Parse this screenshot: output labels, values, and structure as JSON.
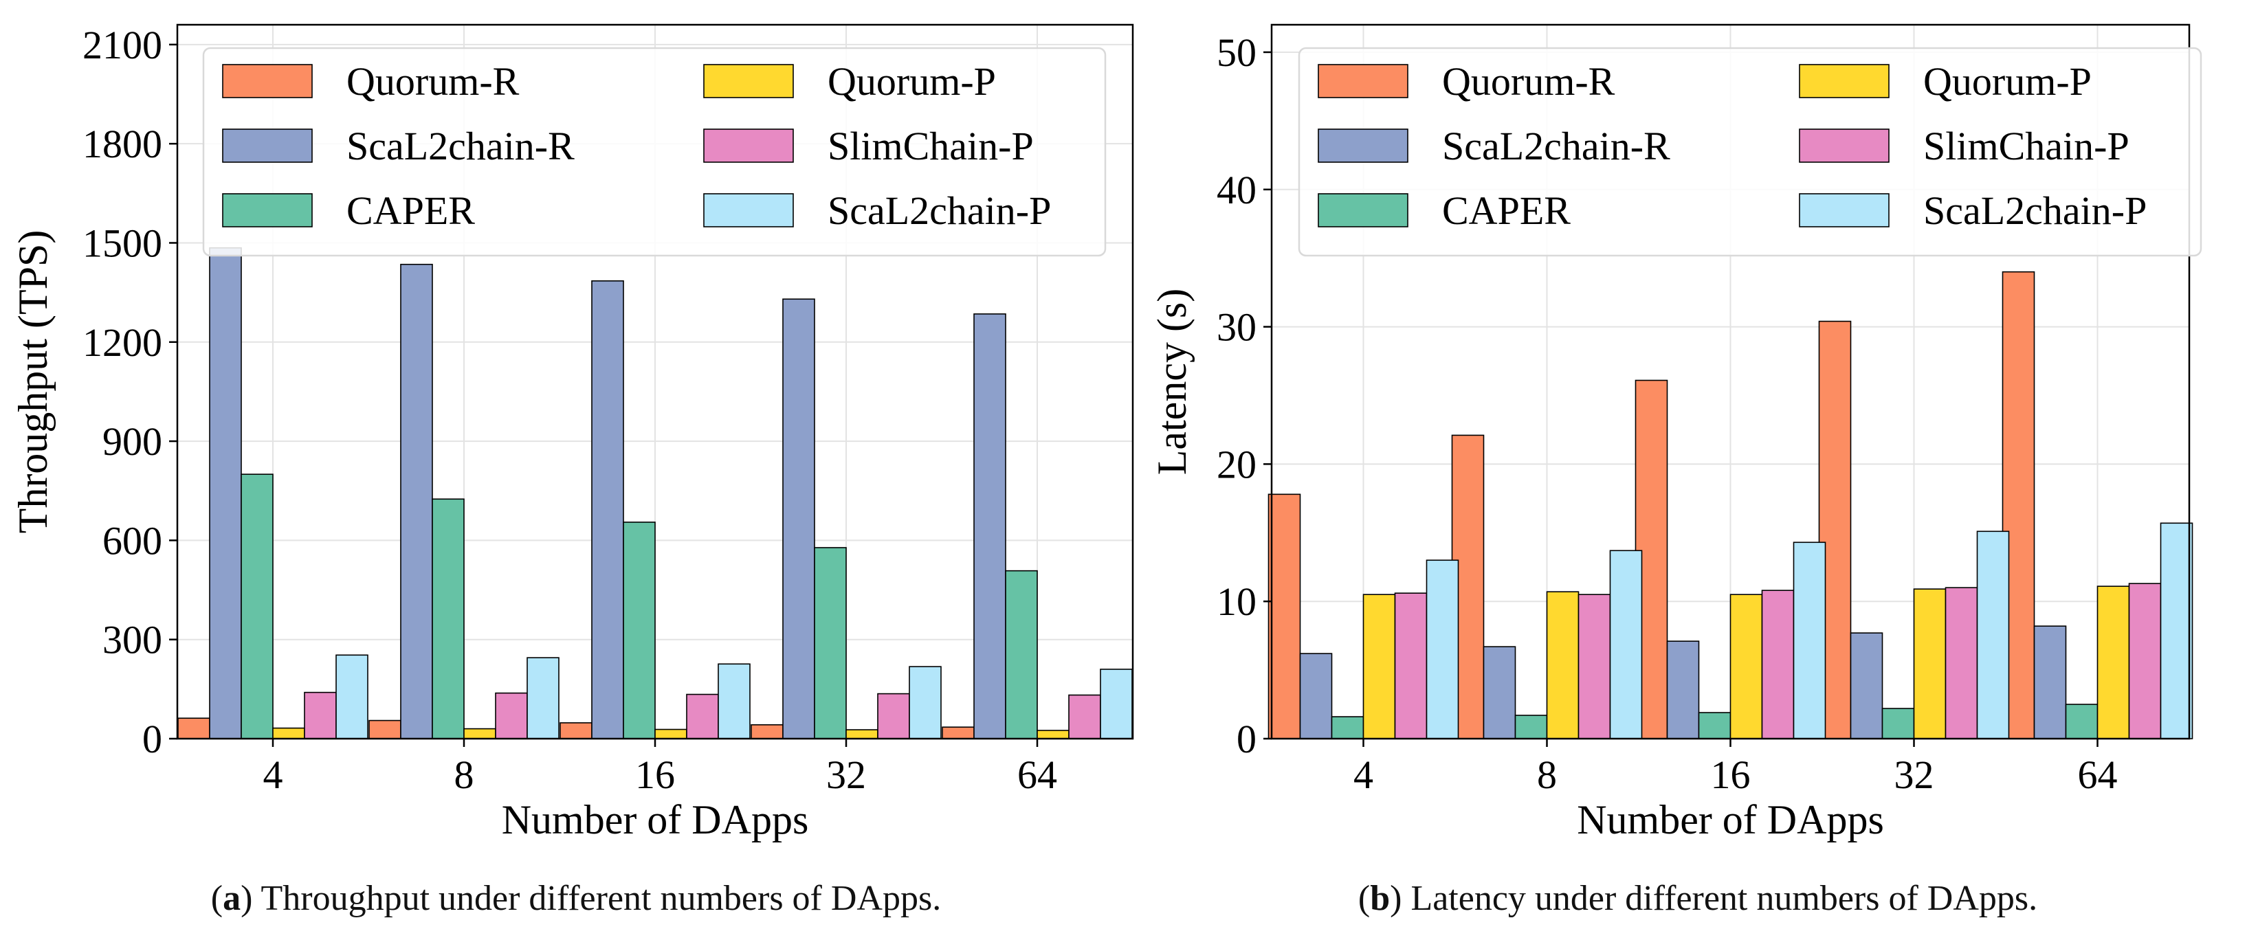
{
  "charts": [
    {
      "type": "bar",
      "xlabel": "Number of DApps",
      "ylabel": "Throughput (TPS)",
      "categories": [
        "4",
        "8",
        "16",
        "32",
        "64"
      ],
      "ylim": [
        0,
        2160
      ],
      "yticks": [
        0,
        300,
        600,
        900,
        1200,
        1500,
        1800,
        2100
      ],
      "grid": true,
      "legend_position": "top",
      "series": [
        {
          "name": "Quorum-R",
          "color": "#fc8d62",
          "values": [
            62,
            55,
            48,
            42,
            35
          ]
        },
        {
          "name": "ScaL2chain-R",
          "color": "#8da0cb",
          "values": [
            1485,
            1435,
            1385,
            1330,
            1285
          ]
        },
        {
          "name": "CAPER",
          "color": "#66c2a5",
          "values": [
            800,
            725,
            655,
            578,
            508
          ]
        },
        {
          "name": "Quorum-P",
          "color": "#ffd92f",
          "values": [
            32,
            30,
            28,
            27,
            25
          ]
        },
        {
          "name": "SlimChain-P",
          "color": "#e78ac3",
          "values": [
            140,
            138,
            134,
            136,
            132
          ]
        },
        {
          "name": "ScaL2chain-P",
          "color": "#b3e6fa",
          "values": [
            253,
            245,
            226,
            218,
            210
          ]
        }
      ]
    },
    {
      "type": "bar",
      "xlabel": "Number of DApps",
      "ylabel": "Latency (s)",
      "categories": [
        "4",
        "8",
        "16",
        "32",
        "64"
      ],
      "ylim": [
        0,
        52
      ],
      "yticks": [
        0,
        10,
        20,
        30,
        40,
        50
      ],
      "grid": true,
      "legend_position": "top",
      "series": [
        {
          "name": "Quorum-R",
          "color": "#fc8d62",
          "values": [
            17.8,
            22.1,
            26.1,
            30.4,
            34.0
          ]
        },
        {
          "name": "ScaL2chain-R",
          "color": "#8da0cb",
          "values": [
            6.2,
            6.7,
            7.1,
            7.7,
            8.2
          ]
        },
        {
          "name": "CAPER",
          "color": "#66c2a5",
          "values": [
            1.6,
            1.7,
            1.9,
            2.2,
            2.5
          ]
        },
        {
          "name": "Quorum-P",
          "color": "#ffd92f",
          "values": [
            10.5,
            10.7,
            10.5,
            10.9,
            11.1
          ]
        },
        {
          "name": "SlimChain-P",
          "color": "#e78ac3",
          "values": [
            10.6,
            10.5,
            10.8,
            11.0,
            11.3
          ]
        },
        {
          "name": "ScaL2chain-P",
          "color": "#b3e6fa",
          "values": [
            13.0,
            13.7,
            14.3,
            15.1,
            15.7
          ]
        }
      ]
    }
  ],
  "captions": [
    {
      "label": "a",
      "text": " Throughput under different numbers of DApps."
    },
    {
      "label": "b",
      "text": " Latency under different numbers of DApps."
    }
  ]
}
